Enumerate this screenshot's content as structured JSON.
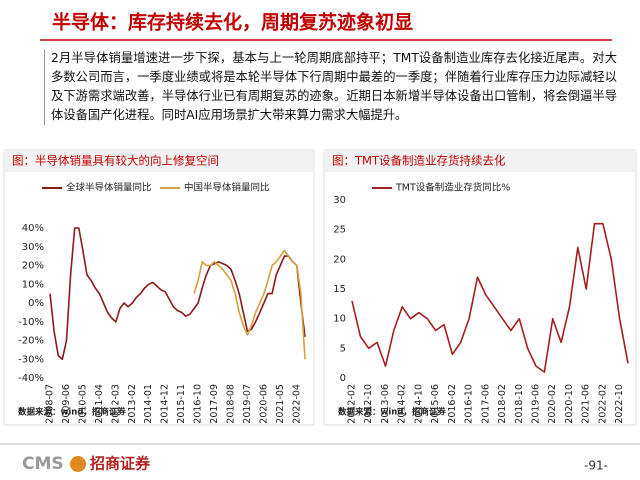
{
  "header": {
    "title": "半导体：库存持续去化，周期复苏迹象初显"
  },
  "summary": "2月半导体销量增速进一步下探，基本与上一轮周期底部持平；TMT设备制造业库存去化接近尾声。对大多数公司而言，一季度业绩或将是本轮半导体下行周期中最差的一季度；伴随着行业库存压力边际减轻以及下游需求端改善，半导体行业已有周期复苏的迹象。近期日本新增半导体设备出口管制，将会倒逼半导体设备国产化进程。同时AI应用场景扩大带来算力需求大幅提升。",
  "chart_data": [
    {
      "type": "line",
      "title": "图：半导体销量具有较大的向上修复空间",
      "source": "数据来源：wind，招商证券",
      "legend": "top",
      "grid": false,
      "categories": [
        "2008-07",
        null,
        null,
        null,
        "2009-06",
        null,
        null,
        null,
        "2010-05",
        null,
        null,
        null,
        "2011-04",
        null,
        null,
        null,
        "2012-03",
        null,
        null,
        null,
        "2013-02",
        null,
        null,
        null,
        "2014-01",
        null,
        null,
        null,
        "2014-12",
        null,
        null,
        null,
        "2015-11",
        null,
        null,
        null,
        "2016-10",
        null,
        null,
        null,
        "2017-09",
        null,
        null,
        null,
        "2018-08",
        null,
        null,
        null,
        "2019-07",
        null,
        null,
        null,
        "2020-06",
        null,
        null,
        null,
        "2021-05",
        null,
        null,
        null,
        "2022-04",
        null,
        null
      ],
      "ylim": [
        -40,
        40
      ],
      "yticks": [
        {
          "value": -40,
          "label": "-40%"
        },
        {
          "value": -30,
          "label": "-30%"
        },
        {
          "value": -20,
          "label": "-20%"
        },
        {
          "value": -10,
          "label": "-10%"
        },
        {
          "value": 0,
          "label": "0%"
        },
        {
          "value": 10,
          "label": "10%"
        },
        {
          "value": 20,
          "label": "20%"
        },
        {
          "value": 30,
          "label": "30%"
        },
        {
          "value": 40,
          "label": "40%"
        }
      ],
      "series": [
        {
          "name": "全球半导体销量同比",
          "color": "#8b1a1a",
          "values": [
            5,
            -15,
            -28,
            -30,
            -20,
            15,
            40,
            40,
            28,
            15,
            12,
            8,
            5,
            0,
            -5,
            -8,
            -10,
            -3,
            0,
            -2,
            0,
            3,
            5,
            8,
            10,
            11,
            9,
            7,
            6,
            2,
            -2,
            -4,
            -5,
            -7,
            -6,
            -3,
            0,
            8,
            15,
            20,
            21,
            22,
            21,
            20,
            18,
            12,
            5,
            -5,
            -15,
            -14,
            -10,
            -5,
            0,
            5,
            5,
            15,
            20,
            25,
            25,
            22,
            20,
            0,
            -18
          ]
        },
        {
          "name": "中国半导体销量同比",
          "color": "#d4a040",
          "values": [
            null,
            null,
            null,
            null,
            null,
            null,
            null,
            null,
            null,
            null,
            null,
            null,
            null,
            null,
            null,
            null,
            null,
            null,
            null,
            null,
            null,
            null,
            null,
            null,
            null,
            null,
            null,
            null,
            null,
            null,
            null,
            null,
            null,
            null,
            null,
            5,
            12,
            22,
            20,
            20,
            22,
            20,
            18,
            15,
            12,
            5,
            -5,
            -12,
            -17,
            -12,
            -5,
            0,
            5,
            12,
            20,
            22,
            25,
            28,
            25,
            22,
            20,
            5,
            -30
          ]
        }
      ]
    },
    {
      "type": "line",
      "title": "图：TMT设备制造业存货持续去化",
      "source": "数据来源：wind，招商证券",
      "legend": "top",
      "grid": false,
      "categories": [
        "2012-02",
        null,
        "2012-10",
        null,
        "2013-06",
        null,
        "2014-02",
        null,
        "2014-10",
        null,
        "2015-06",
        null,
        "2016-02",
        null,
        "2016-10",
        null,
        "2017-06",
        null,
        "2018-02",
        null,
        "2018-10",
        null,
        "2019-06",
        null,
        "2020-02",
        null,
        "2020-10",
        null,
        "2021-06",
        null,
        "2022-02",
        null,
        "2022-10",
        null
      ],
      "ylim": [
        0,
        30
      ],
      "yticks": [
        0,
        5,
        10,
        15,
        20,
        25,
        30
      ],
      "series": [
        {
          "name": "TMT设备制造业存货同比%",
          "color": "#a31f1f",
          "values": [
            13,
            7,
            5,
            6,
            2,
            8,
            12,
            10,
            11,
            10,
            8,
            9,
            4,
            6,
            10,
            17,
            14,
            12,
            10,
            8,
            10,
            5,
            2,
            1,
            10,
            6,
            12,
            22,
            15,
            26,
            26,
            20,
            10,
            2.5
          ]
        }
      ]
    }
  ],
  "footer": {
    "brand": "CMS",
    "company": "招商证券",
    "page": "-91-"
  }
}
